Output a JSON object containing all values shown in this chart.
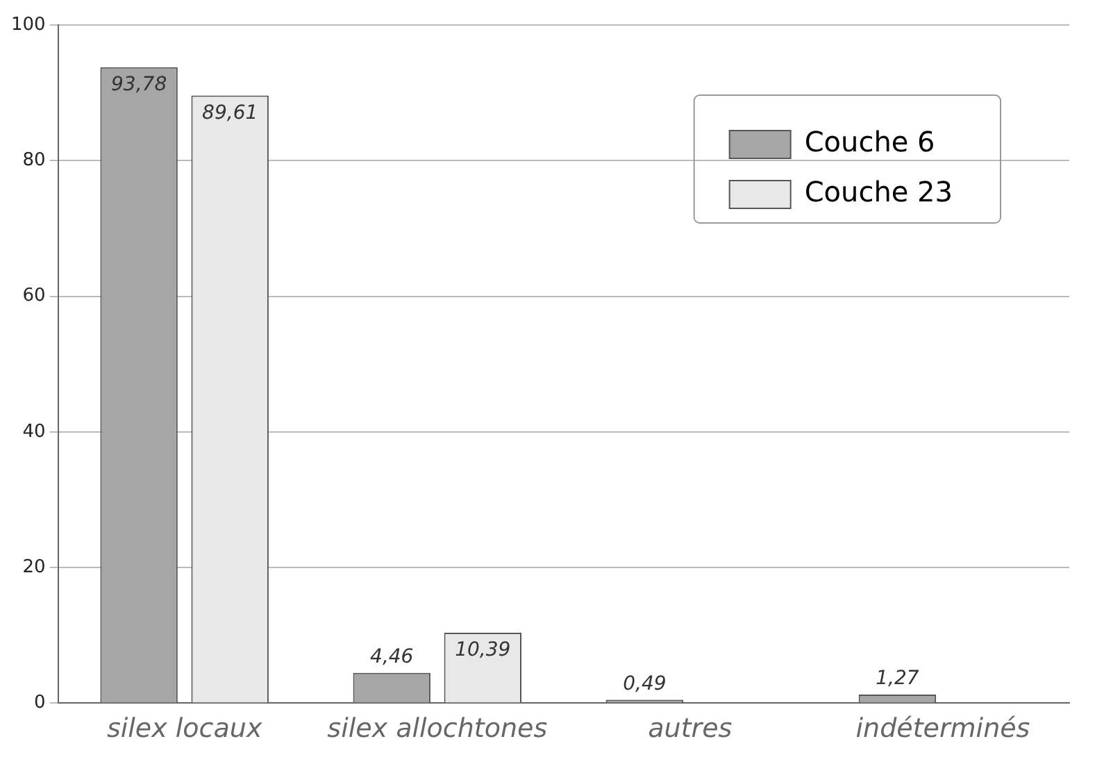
{
  "chart_data": {
    "type": "bar",
    "categories": [
      "silex locaux",
      "silex allochtones",
      "autres",
      "indéterminés"
    ],
    "series": [
      {
        "name": "Couche 6",
        "color": "#a6a6a6",
        "values": [
          93.78,
          4.46,
          0.49,
          1.27
        ],
        "value_labels": [
          "93,78",
          "4,46",
          "0,49",
          "1,27"
        ]
      },
      {
        "name": "Couche 23",
        "color": "#e8e8e8",
        "values": [
          89.61,
          10.39,
          null,
          null
        ],
        "value_labels": [
          "89,61",
          "10,39",
          null,
          null
        ]
      }
    ],
    "ylim": [
      0,
      100
    ],
    "yticks": [
      0,
      20,
      40,
      60,
      80,
      100
    ],
    "grid": "y",
    "legend": "top right"
  }
}
